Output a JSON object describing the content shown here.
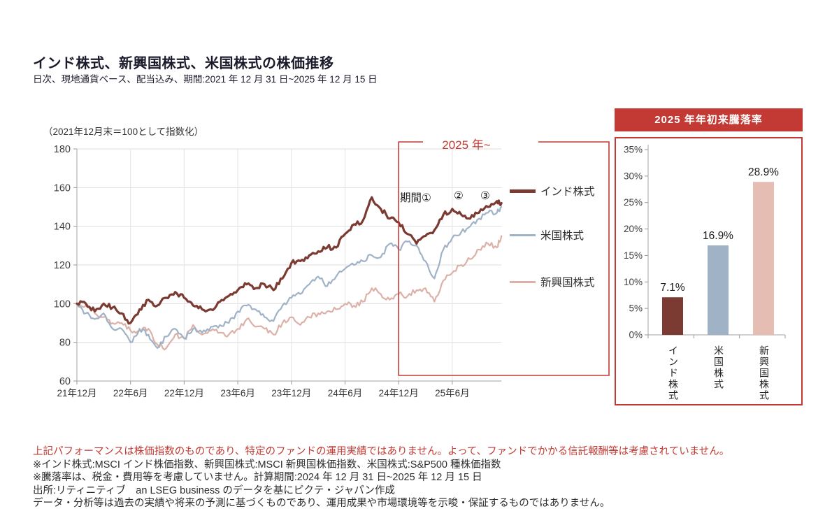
{
  "page": {
    "title": "インド株式、新興国株式、米国株式の株価推移",
    "subtitle": "日次、現地通貨ベース、配当込み、期間:2021 年 12 月 31 日~2025 年 12 月 15 日"
  },
  "accent_color": "#c23a33",
  "chart_data": [
    {
      "type": "line",
      "title": "インド株式、新興国株式、米国株式の株価推移",
      "index_note": "（2021年12月末＝100として指数化）",
      "x_start": "2021-12",
      "x_end": "2025-12-15",
      "x_tick_labels": [
        "21年12月",
        "22年6月",
        "22年12月",
        "23年6月",
        "23年12月",
        "24年6月",
        "24年12月",
        "25年6月"
      ],
      "ylim": [
        60,
        180
      ],
      "y_ticks": [
        60,
        80,
        100,
        120,
        140,
        160,
        180
      ],
      "grid": true,
      "legend_position": "right",
      "series": [
        {
          "name": "インド株式",
          "color": "#7b3a32",
          "line_width": 3.2,
          "values": [
            100,
            100,
            96,
            100,
            98,
            95,
            90,
            97,
            102,
            99,
            103,
            106,
            103,
            99,
            97,
            97,
            101,
            104,
            107,
            110,
            108,
            110,
            107,
            113,
            121,
            122,
            125,
            127,
            129,
            129,
            136,
            141,
            143,
            155,
            149,
            144,
            142,
            136,
            131,
            135,
            138,
            146,
            149,
            146,
            144,
            147,
            150,
            153,
            152
          ]
        },
        {
          "name": "米国株式",
          "color": "#a0b2c6",
          "line_width": 2.2,
          "values": [
            100,
            95,
            92,
            95,
            87,
            87,
            80,
            87,
            84,
            77,
            83,
            87,
            82,
            87,
            85,
            88,
            89,
            90,
            96,
            99,
            97,
            93,
            91,
            99,
            103,
            105,
            110,
            114,
            109,
            114,
            118,
            120,
            122,
            125,
            124,
            131,
            128,
            132,
            130,
            122,
            113,
            128,
            134,
            137,
            140,
            144,
            147,
            147,
            150
          ]
        },
        {
          "name": "新興国株式",
          "color": "#dbb1a8",
          "line_width": 2.2,
          "values": [
            100,
            99,
            95,
            93,
            90,
            90,
            86,
            86,
            87,
            79,
            77,
            84,
            82,
            89,
            84,
            86,
            85,
            84,
            87,
            92,
            88,
            87,
            84,
            90,
            93,
            89,
            93,
            95,
            96,
            97,
            100,
            99,
            101,
            108,
            105,
            102,
            105,
            104,
            107,
            108,
            101,
            112,
            116,
            120,
            123,
            128,
            131,
            129,
            135
          ]
        }
      ],
      "highlight": {
        "label": "2025 年~",
        "from_month_index": 36,
        "color": "#c23a33"
      },
      "period_markers": [
        "期間①",
        "②",
        "③"
      ]
    },
    {
      "type": "bar",
      "title": "2025 年年初来騰落率",
      "categories": [
        "インド株式",
        "米国株式",
        "新興国株式"
      ],
      "values": [
        7.1,
        16.9,
        28.9
      ],
      "value_labels": [
        "7.1%",
        "16.9%",
        "28.9%"
      ],
      "colors": [
        "#7b3a32",
        "#a0b2c6",
        "#e5bdb2"
      ],
      "y_ticks": [
        "0%",
        "5%",
        "10%",
        "15%",
        "20%",
        "25%",
        "30%",
        "35%"
      ],
      "ylim": [
        0,
        35
      ],
      "grid": false
    }
  ],
  "footer": {
    "warning": "上記パフォーマンスは株価指数のものであり、特定のファンドの運用実績ではありません。よって、ファンドでかかる信託報酬等は考慮されていません。",
    "notes": [
      "※インド株式:MSCI インド株価指数、新興国株式:MSCI 新興国株価指数、米国株式:S&P500 種株価指数",
      "※騰落率は、税金・費用等を考慮していません。計算期間:2024 年 12 月 31 日~2025 年 12 月 15 日",
      "出所:リティニティブ　an LSEG business のデータを基にピクテ・ジャパン作成",
      "データ・分析等は過去の実績や将来の予測に基づくものであり、運用成果や市場環境等を示唆・保証するものではありません。"
    ]
  }
}
